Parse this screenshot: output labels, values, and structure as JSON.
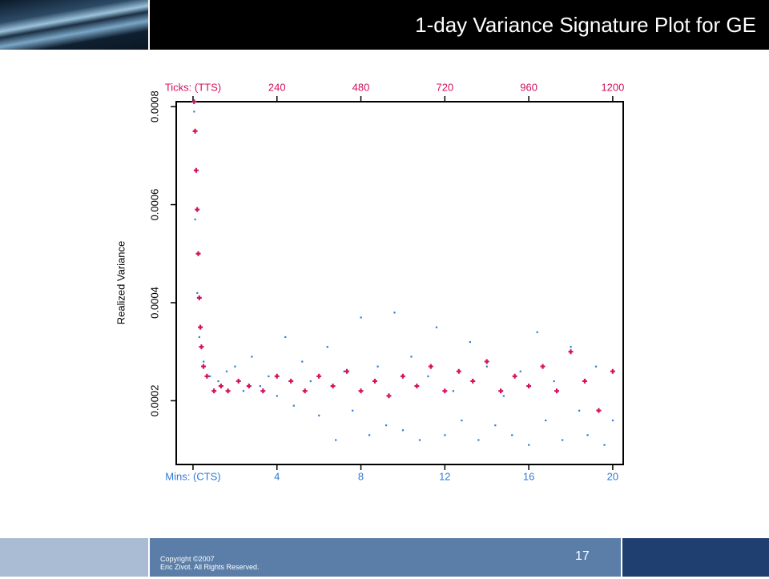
{
  "header": {
    "title": "1-day Variance Signature Plot for GE"
  },
  "chart_data": {
    "type": "scatter",
    "y_label": "Realized Variance",
    "xlim": [
      -0.8,
      20.5
    ],
    "x2lim": [
      -48,
      1230
    ],
    "ylim": [
      7e-05,
      0.00081
    ],
    "xticks": [
      {
        "value": 0,
        "label": "Mins: (CTS)"
      },
      4,
      8,
      12,
      16,
      20
    ],
    "x2ticks": [
      {
        "value": 0,
        "label": "Ticks: (TTS)"
      },
      240,
      480,
      720,
      960,
      1200
    ],
    "yticks": [
      0.0002,
      0.0004,
      0.0006,
      0.0008
    ],
    "series": [
      {
        "color": "#2f7bd6",
        "x": [
          0.05,
          0.1,
          0.2,
          0.3,
          0.5,
          0.8,
          1.2,
          1.6,
          2,
          2.4,
          2.8,
          3.2,
          3.6,
          4,
          4.4,
          4.8,
          5.2,
          5.6,
          6,
          6.4,
          6.8,
          7.2,
          7.6,
          8,
          8.4,
          8.8,
          9.2,
          9.6,
          10,
          10.4,
          10.8,
          11.2,
          11.6,
          12,
          12.4,
          12.8,
          13.2,
          13.6,
          14,
          14.4,
          14.8,
          15.2,
          15.6,
          16,
          16.4,
          16.8,
          17.2,
          17.6,
          18,
          18.4,
          18.8,
          19.2,
          19.6,
          20
        ],
        "values": [
          0.00079,
          0.00057,
          0.00042,
          0.00033,
          0.00028,
          0.00025,
          0.00024,
          0.00026,
          0.00027,
          0.00022,
          0.00029,
          0.00023,
          0.00025,
          0.00021,
          0.00033,
          0.00019,
          0.00028,
          0.00024,
          0.00017,
          0.00031,
          0.00012,
          0.00026,
          0.00018,
          0.00037,
          0.00013,
          0.00027,
          0.00015,
          0.00038,
          0.00014,
          0.00029,
          0.00012,
          0.00025,
          0.00035,
          0.00013,
          0.00022,
          0.00016,
          0.00032,
          0.00012,
          0.00027,
          0.00015,
          0.00021,
          0.00013,
          0.00026,
          0.00011,
          0.00034,
          0.00016,
          0.00024,
          0.00012,
          0.00031,
          0.00018,
          0.00013,
          0.00027,
          0.00011,
          0.00016
        ]
      },
      {
        "color": "#d4105e",
        "axis": "x2",
        "x": [
          3,
          6,
          9,
          12,
          15,
          18,
          21,
          24,
          30,
          40,
          60,
          80,
          100,
          130,
          160,
          200,
          240,
          280,
          320,
          360,
          400,
          440,
          480,
          520,
          560,
          600,
          640,
          680,
          720,
          760,
          800,
          840,
          880,
          920,
          960,
          1000,
          1040,
          1080,
          1120,
          1160,
          1200
        ],
        "values": [
          0.00081,
          0.00075,
          0.00067,
          0.00059,
          0.0005,
          0.00041,
          0.00035,
          0.00031,
          0.00027,
          0.00025,
          0.00022,
          0.00023,
          0.00022,
          0.00024,
          0.00023,
          0.00022,
          0.00025,
          0.00024,
          0.00022,
          0.00025,
          0.00023,
          0.00026,
          0.00022,
          0.00024,
          0.00021,
          0.00025,
          0.00023,
          0.00027,
          0.00022,
          0.00026,
          0.00024,
          0.00028,
          0.00022,
          0.00025,
          0.00023,
          0.00027,
          0.00022,
          0.0003,
          0.00024,
          0.00018,
          0.00026
        ]
      }
    ]
  },
  "footer": {
    "copyright": "Copyright ©2007",
    "rights": "Eric Zivot. All Rights Reserved.",
    "page_number": "17"
  }
}
